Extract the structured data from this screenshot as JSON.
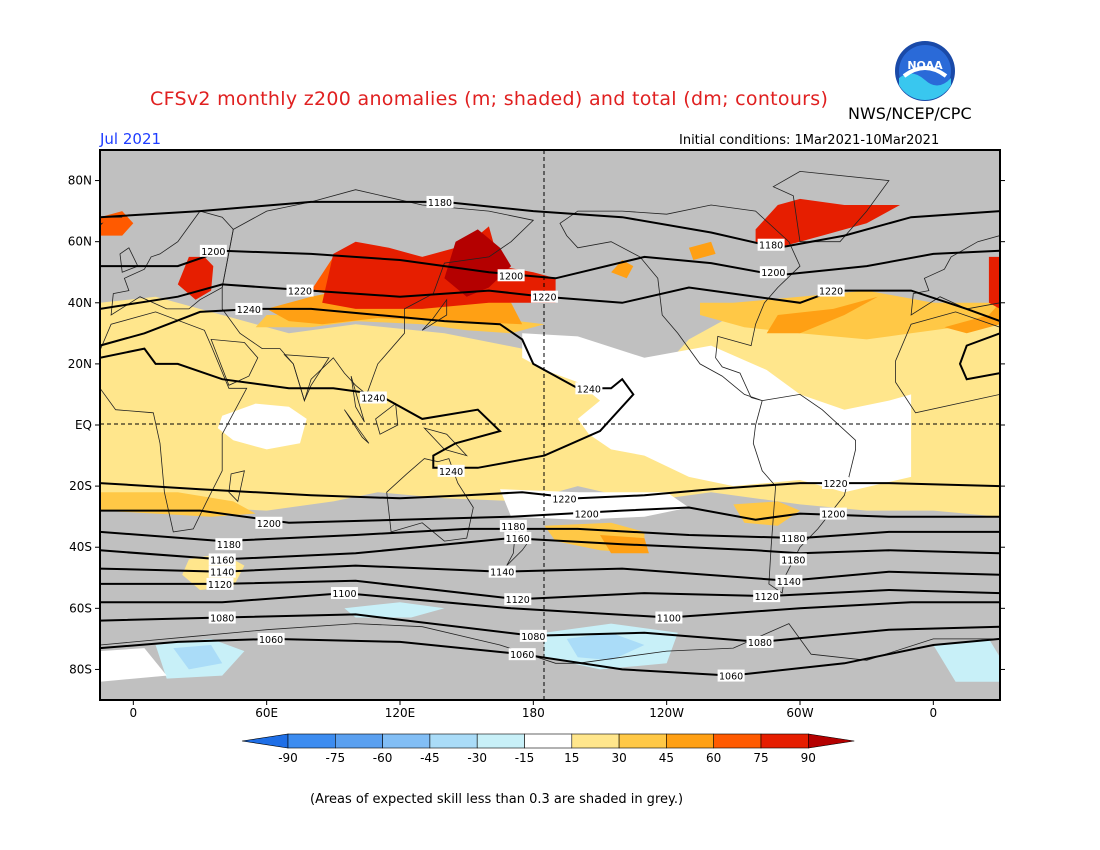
{
  "header": {
    "title": "CFSv2 monthly z200 anomalies (m; shaded) and total (dm; contours)",
    "org": "NWS/NCEP/CPC",
    "period": "Jul 2021",
    "initial_conditions": "Initial conditions: 1Mar2021-10Mar2021",
    "logo_text": "NOAA"
  },
  "footer": {
    "note": "(Areas of expected skill less than 0.3 are shaded in grey.)"
  },
  "axes": {
    "lat_labels": [
      "80N",
      "60N",
      "40N",
      "20N",
      "EQ",
      "20S",
      "40S",
      "60S",
      "80S"
    ],
    "lon_labels": [
      "0",
      "60E",
      "120E",
      "180",
      "120W",
      "60W",
      "0"
    ]
  },
  "colorbar": {
    "labels": [
      "-90",
      "-75",
      "-60",
      "-45",
      "-30",
      "-15",
      "15",
      "30",
      "45",
      "60",
      "75",
      "90"
    ],
    "colors": [
      "#1e6ee6",
      "#3c8cf0",
      "#5aa0f0",
      "#82bef5",
      "#aadcf8",
      "#c8f0f8",
      "#ffffff",
      "#ffe68c",
      "#ffc846",
      "#ffa014",
      "#ff5a00",
      "#e61e00",
      "#b40000"
    ]
  },
  "colors": {
    "skill_grey": "#c0c0c0",
    "contour": "#000000"
  },
  "contour_labels": [
    {
      "text": "1180",
      "lon": 138,
      "lat": 73
    },
    {
      "text": "1200",
      "lon": 36,
      "lat": 57
    },
    {
      "text": "1220",
      "lon": 75,
      "lat": 44
    },
    {
      "text": "1240",
      "lon": 52,
      "lat": 38
    },
    {
      "text": "1200",
      "lon": 170,
      "lat": 49
    },
    {
      "text": "1220",
      "lon": 185,
      "lat": 42
    },
    {
      "text": "1180",
      "lon": 287,
      "lat": 59
    },
    {
      "text": "1200",
      "lon": 288,
      "lat": 50
    },
    {
      "text": "1220",
      "lon": 314,
      "lat": 44
    },
    {
      "text": "1240",
      "lon": 205,
      "lat": 12
    },
    {
      "text": "1240",
      "lon": 108,
      "lat": 9
    },
    {
      "text": "1240",
      "lon": 143,
      "lat": -15
    },
    {
      "text": "1220",
      "lon": 316,
      "lat": -19
    },
    {
      "text": "1220",
      "lon": 194,
      "lat": -24
    },
    {
      "text": "1200",
      "lon": 204,
      "lat": -29
    },
    {
      "text": "1200",
      "lon": 315,
      "lat": -29
    },
    {
      "text": "1200",
      "lon": 61,
      "lat": -32
    },
    {
      "text": "1180",
      "lon": 171,
      "lat": -33
    },
    {
      "text": "1160",
      "lon": 173,
      "lat": -37
    },
    {
      "text": "1180",
      "lon": 43,
      "lat": -39
    },
    {
      "text": "1180",
      "lon": 297,
      "lat": -37
    },
    {
      "text": "1180",
      "lon": 297,
      "lat": -44
    },
    {
      "text": "1160",
      "lon": 40,
      "lat": -44
    },
    {
      "text": "1140",
      "lon": 40,
      "lat": -48
    },
    {
      "text": "1120",
      "lon": 39,
      "lat": -52
    },
    {
      "text": "1140",
      "lon": 166,
      "lat": -48
    },
    {
      "text": "1140",
      "lon": 295,
      "lat": -51
    },
    {
      "text": "1100",
      "lon": 95,
      "lat": -55
    },
    {
      "text": "1120",
      "lon": 173,
      "lat": -57
    },
    {
      "text": "1120",
      "lon": 285,
      "lat": -56
    },
    {
      "text": "1080",
      "lon": 40,
      "lat": -63
    },
    {
      "text": "1100",
      "lon": 241,
      "lat": -63
    },
    {
      "text": "1060",
      "lon": 62,
      "lat": -70
    },
    {
      "text": "1080",
      "lon": 180,
      "lat": -69
    },
    {
      "text": "1080",
      "lon": 282,
      "lat": -71
    },
    {
      "text": "1060",
      "lon": 175,
      "lat": -75
    },
    {
      "text": "1060",
      "lon": 269,
      "lat": -82
    }
  ]
}
